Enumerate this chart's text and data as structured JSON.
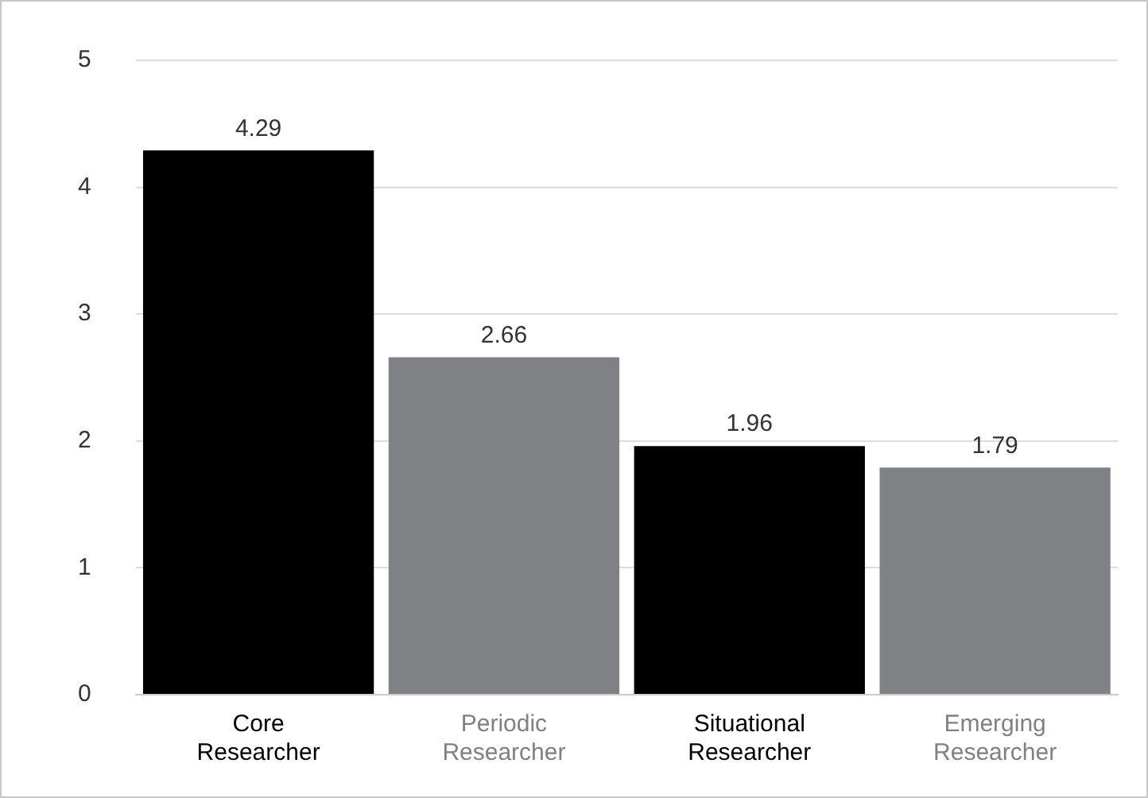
{
  "chart_data": {
    "type": "bar",
    "categories": [
      "Core Researcher",
      "Periodic Researcher",
      "Situational Researcher",
      "Emerging Researcher"
    ],
    "values": [
      4.29,
      2.66,
      1.96,
      1.79
    ],
    "colors": [
      "#000000",
      "#808184",
      "#000000",
      "#808184"
    ],
    "ylim": [
      0,
      5
    ],
    "yticks": [
      0,
      1,
      2,
      3,
      4,
      5
    ],
    "grid": "y",
    "data_labels": true,
    "legend": false
  }
}
